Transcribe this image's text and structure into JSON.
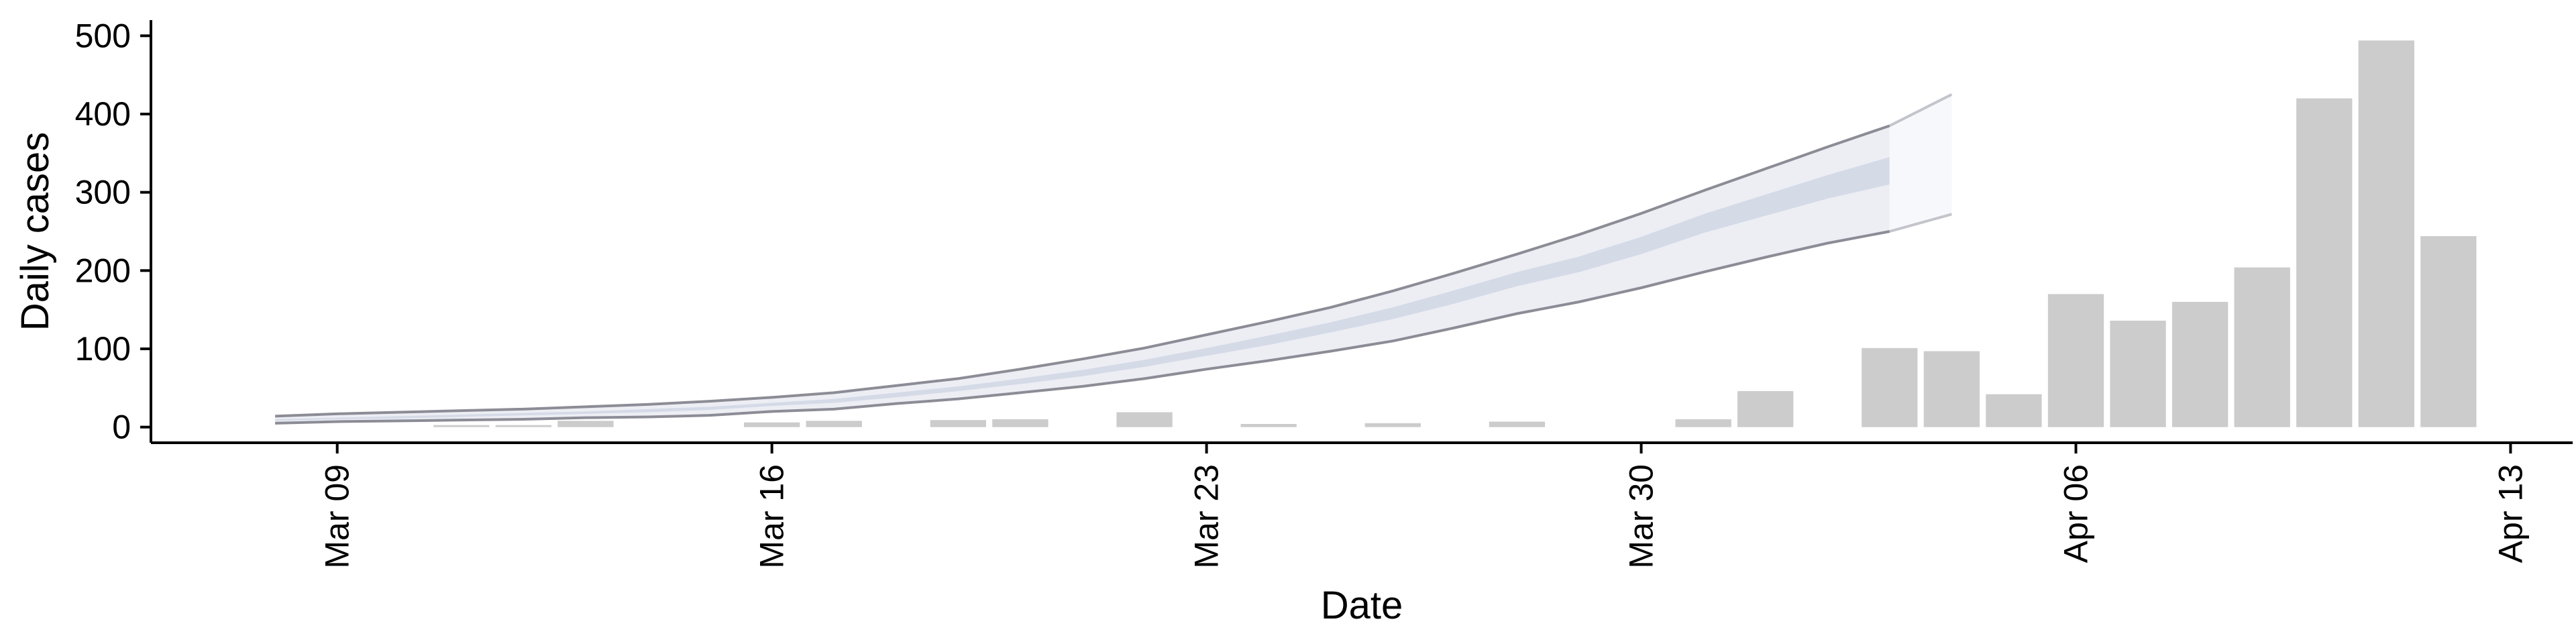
{
  "chart_data": {
    "type": "bar",
    "title": "",
    "xlabel": "Date",
    "ylabel": "Daily cases",
    "ylim": [
      -20,
      520
    ],
    "yticks": [
      0,
      100,
      200,
      300,
      400,
      500
    ],
    "xlim": [
      "2020-03-06",
      "2020-04-14"
    ],
    "xticks": [
      {
        "date": "2020-03-09",
        "label": "Mar 09"
      },
      {
        "date": "2020-03-16",
        "label": "Mar 16"
      },
      {
        "date": "2020-03-23",
        "label": "Mar 23"
      },
      {
        "date": "2020-03-30",
        "label": "Mar 30"
      },
      {
        "date": "2020-04-06",
        "label": "Apr 06"
      },
      {
        "date": "2020-04-13",
        "label": "Apr 13"
      }
    ],
    "grid": false,
    "colors": {
      "bars": "#cccccc",
      "band_outer": "#eceef4",
      "band_mid": "#e1e4ee",
      "band_inner": "#ced3e3",
      "band_lines": "#8c8c96",
      "forecast_fade": "#f7f8fb"
    },
    "bars": {
      "dates": [
        "2020-03-11",
        "2020-03-12",
        "2020-03-13",
        "2020-03-16",
        "2020-03-17",
        "2020-03-19",
        "2020-03-20",
        "2020-03-22",
        "2020-03-24",
        "2020-03-26",
        "2020-03-28",
        "2020-03-31",
        "2020-04-01",
        "2020-04-03",
        "2020-04-04",
        "2020-04-05",
        "2020-04-06",
        "2020-04-07",
        "2020-04-08",
        "2020-04-09",
        "2020-04-10",
        "2020-04-11",
        "2020-04-12"
      ],
      "values": [
        1,
        2,
        8,
        6,
        8,
        9,
        10,
        19,
        4,
        5,
        7,
        10,
        46,
        101,
        97,
        42,
        170,
        136,
        160,
        204,
        420,
        494,
        244
      ]
    },
    "projection_band": {
      "dates": [
        "2020-03-08",
        "2020-03-09",
        "2020-03-10",
        "2020-03-11",
        "2020-03-12",
        "2020-03-13",
        "2020-03-14",
        "2020-03-15",
        "2020-03-16",
        "2020-03-17",
        "2020-03-18",
        "2020-03-19",
        "2020-03-20",
        "2020-03-21",
        "2020-03-22",
        "2020-03-23",
        "2020-03-24",
        "2020-03-25",
        "2020-03-26",
        "2020-03-27",
        "2020-03-28",
        "2020-03-29",
        "2020-03-30",
        "2020-03-31",
        "2020-04-01",
        "2020-04-02",
        "2020-04-03"
      ],
      "lower": [
        5,
        7,
        8,
        9,
        10,
        12,
        13,
        15,
        20,
        23,
        30,
        36,
        44,
        52,
        62,
        74,
        85,
        97,
        110,
        127,
        145,
        160,
        178,
        198,
        217,
        235,
        250
      ],
      "inner_lower": [
        8,
        10,
        11,
        13,
        15,
        17,
        19,
        22,
        27,
        31,
        38,
        46,
        55,
        65,
        77,
        91,
        105,
        121,
        138,
        158,
        180,
        198,
        221,
        248,
        270,
        292,
        310
      ],
      "inner_upper": [
        10,
        12,
        14,
        16,
        18,
        20,
        23,
        26,
        31,
        36,
        44,
        52,
        62,
        73,
        86,
        101,
        117,
        134,
        153,
        175,
        198,
        218,
        243,
        272,
        297,
        322,
        345
      ],
      "upper": [
        14,
        17,
        19,
        21,
        23,
        26,
        29,
        33,
        38,
        44,
        53,
        62,
        74,
        87,
        101,
        118,
        135,
        153,
        174,
        197,
        221,
        246,
        273,
        302,
        330,
        358,
        385
      ],
      "outer_upper_forecast": [
        425
      ],
      "outer_lower_forecast": [
        272
      ]
    }
  }
}
